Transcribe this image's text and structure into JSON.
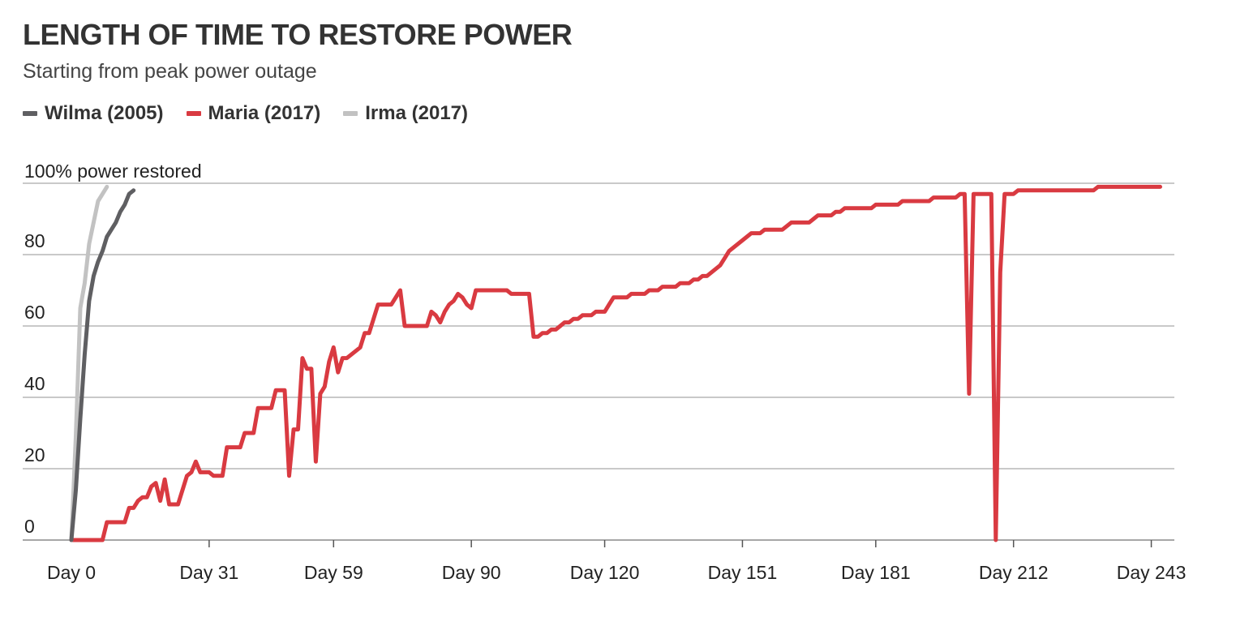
{
  "header": {
    "title": "LENGTH OF TIME TO RESTORE POWER",
    "subtitle": "Starting from peak power outage"
  },
  "legend": [
    {
      "label": "Wilma (2005)",
      "color": "#5f5f62"
    },
    {
      "label": "Maria (2017)",
      "color": "#d93a41"
    },
    {
      "label": "Irma (2017)",
      "color": "#c2c2c2"
    }
  ],
  "chart_data": {
    "type": "line",
    "title": "LENGTH OF TIME TO RESTORE POWER",
    "subtitle": "Starting from peak power outage",
    "xlabel": "",
    "ylabel": "",
    "xlim": [
      0,
      246
    ],
    "ylim": [
      0,
      100
    ],
    "x_ticks": [
      {
        "value": 0,
        "label": "Day 0"
      },
      {
        "value": 31,
        "label": "Day 31"
      },
      {
        "value": 59,
        "label": "Day 59"
      },
      {
        "value": 90,
        "label": "Day 90"
      },
      {
        "value": 120,
        "label": "Day 120"
      },
      {
        "value": 151,
        "label": "Day 151"
      },
      {
        "value": 181,
        "label": "Day 181"
      },
      {
        "value": 212,
        "label": "Day 212"
      },
      {
        "value": 243,
        "label": "Day 243"
      }
    ],
    "y_ticks": [
      {
        "value": 0,
        "label": "0"
      },
      {
        "value": 20,
        "label": "20"
      },
      {
        "value": 40,
        "label": "40"
      },
      {
        "value": 60,
        "label": "60"
      },
      {
        "value": 80,
        "label": "80"
      }
    ],
    "annotation": {
      "text": "100% power restored",
      "y": 100
    },
    "grid": true,
    "legend_position": "top-left",
    "series": [
      {
        "name": "Wilma (2005)",
        "color": "#5f5f62",
        "points": [
          [
            0,
            0
          ],
          [
            1,
            14
          ],
          [
            2,
            34
          ],
          [
            3,
            52
          ],
          [
            4,
            67
          ],
          [
            5,
            74
          ],
          [
            6,
            78
          ],
          [
            7,
            81
          ],
          [
            8,
            85
          ],
          [
            9,
            87
          ],
          [
            10,
            89
          ],
          [
            11,
            92
          ],
          [
            12,
            94
          ],
          [
            13,
            97
          ],
          [
            14,
            98
          ]
        ]
      },
      {
        "name": "Maria (2017)",
        "color": "#d93a41",
        "points": [
          [
            0,
            0
          ],
          [
            7,
            0
          ],
          [
            8,
            5
          ],
          [
            12,
            5
          ],
          [
            13,
            9
          ],
          [
            14,
            9
          ],
          [
            15,
            11
          ],
          [
            16,
            12
          ],
          [
            17,
            12
          ],
          [
            18,
            15
          ],
          [
            19,
            16
          ],
          [
            20,
            11
          ],
          [
            21,
            17
          ],
          [
            22,
            10
          ],
          [
            24,
            10
          ],
          [
            26,
            18
          ],
          [
            27,
            19
          ],
          [
            28,
            22
          ],
          [
            29,
            19
          ],
          [
            31,
            19
          ],
          [
            32,
            18
          ],
          [
            34,
            18
          ],
          [
            35,
            26
          ],
          [
            38,
            26
          ],
          [
            39,
            30
          ],
          [
            41,
            30
          ],
          [
            42,
            37
          ],
          [
            45,
            37
          ],
          [
            46,
            42
          ],
          [
            48,
            42
          ],
          [
            49,
            18
          ],
          [
            50,
            31
          ],
          [
            51,
            31
          ],
          [
            52,
            51
          ],
          [
            53,
            48
          ],
          [
            54,
            48
          ],
          [
            55,
            22
          ],
          [
            56,
            41
          ],
          [
            57,
            43
          ],
          [
            58,
            50
          ],
          [
            59,
            54
          ],
          [
            60,
            47
          ],
          [
            61,
            51
          ],
          [
            62,
            51
          ],
          [
            63,
            52
          ],
          [
            65,
            54
          ],
          [
            66,
            58
          ],
          [
            67,
            58
          ],
          [
            68,
            62
          ],
          [
            69,
            66
          ],
          [
            72,
            66
          ],
          [
            74,
            70
          ],
          [
            75,
            60
          ],
          [
            80,
            60
          ],
          [
            81,
            64
          ],
          [
            82,
            63
          ],
          [
            83,
            61
          ],
          [
            84,
            64
          ],
          [
            85,
            66
          ],
          [
            86,
            67
          ],
          [
            87,
            69
          ],
          [
            88,
            68
          ],
          [
            89,
            66
          ],
          [
            90,
            65
          ],
          [
            91,
            70
          ],
          [
            98,
            70
          ],
          [
            99,
            69
          ],
          [
            103,
            69
          ],
          [
            104,
            57
          ],
          [
            105,
            57
          ],
          [
            106,
            58
          ],
          [
            107,
            58
          ],
          [
            108,
            59
          ],
          [
            109,
            59
          ],
          [
            110,
            60
          ],
          [
            111,
            61
          ],
          [
            112,
            61
          ],
          [
            113,
            62
          ],
          [
            114,
            62
          ],
          [
            115,
            63
          ],
          [
            117,
            63
          ],
          [
            118,
            64
          ],
          [
            120,
            64
          ],
          [
            121,
            66
          ],
          [
            122,
            68
          ],
          [
            125,
            68
          ],
          [
            126,
            69
          ],
          [
            129,
            69
          ],
          [
            130,
            70
          ],
          [
            132,
            70
          ],
          [
            133,
            71
          ],
          [
            136,
            71
          ],
          [
            137,
            72
          ],
          [
            139,
            72
          ],
          [
            140,
            73
          ],
          [
            141,
            73
          ],
          [
            142,
            74
          ],
          [
            143,
            74
          ],
          [
            145,
            76
          ],
          [
            146,
            77
          ],
          [
            147,
            79
          ],
          [
            148,
            81
          ],
          [
            152,
            85
          ],
          [
            153,
            86
          ],
          [
            155,
            86
          ],
          [
            156,
            87
          ],
          [
            160,
            87
          ],
          [
            161,
            88
          ],
          [
            162,
            89
          ],
          [
            166,
            89
          ],
          [
            167,
            90
          ],
          [
            168,
            91
          ],
          [
            171,
            91
          ],
          [
            172,
            92
          ],
          [
            173,
            92
          ],
          [
            174,
            93
          ],
          [
            180,
            93
          ],
          [
            181,
            94
          ],
          [
            186,
            94
          ],
          [
            187,
            95
          ],
          [
            193,
            95
          ],
          [
            194,
            96
          ],
          [
            199,
            96
          ],
          [
            200,
            97
          ],
          [
            201,
            97
          ],
          [
            202,
            41
          ],
          [
            203,
            97
          ],
          [
            207,
            97
          ],
          [
            208,
            0
          ],
          [
            209,
            75
          ],
          [
            210,
            97
          ],
          [
            212,
            97
          ],
          [
            213,
            98
          ],
          [
            230,
            98
          ],
          [
            231,
            99
          ],
          [
            245,
            99
          ]
        ]
      },
      {
        "name": "Irma (2017)",
        "color": "#c2c2c2",
        "points": [
          [
            0,
            0
          ],
          [
            1,
            29
          ],
          [
            2,
            65
          ],
          [
            3,
            72
          ],
          [
            4,
            83
          ],
          [
            5,
            89
          ],
          [
            6,
            95
          ],
          [
            7,
            97
          ],
          [
            8,
            99
          ]
        ]
      }
    ]
  }
}
